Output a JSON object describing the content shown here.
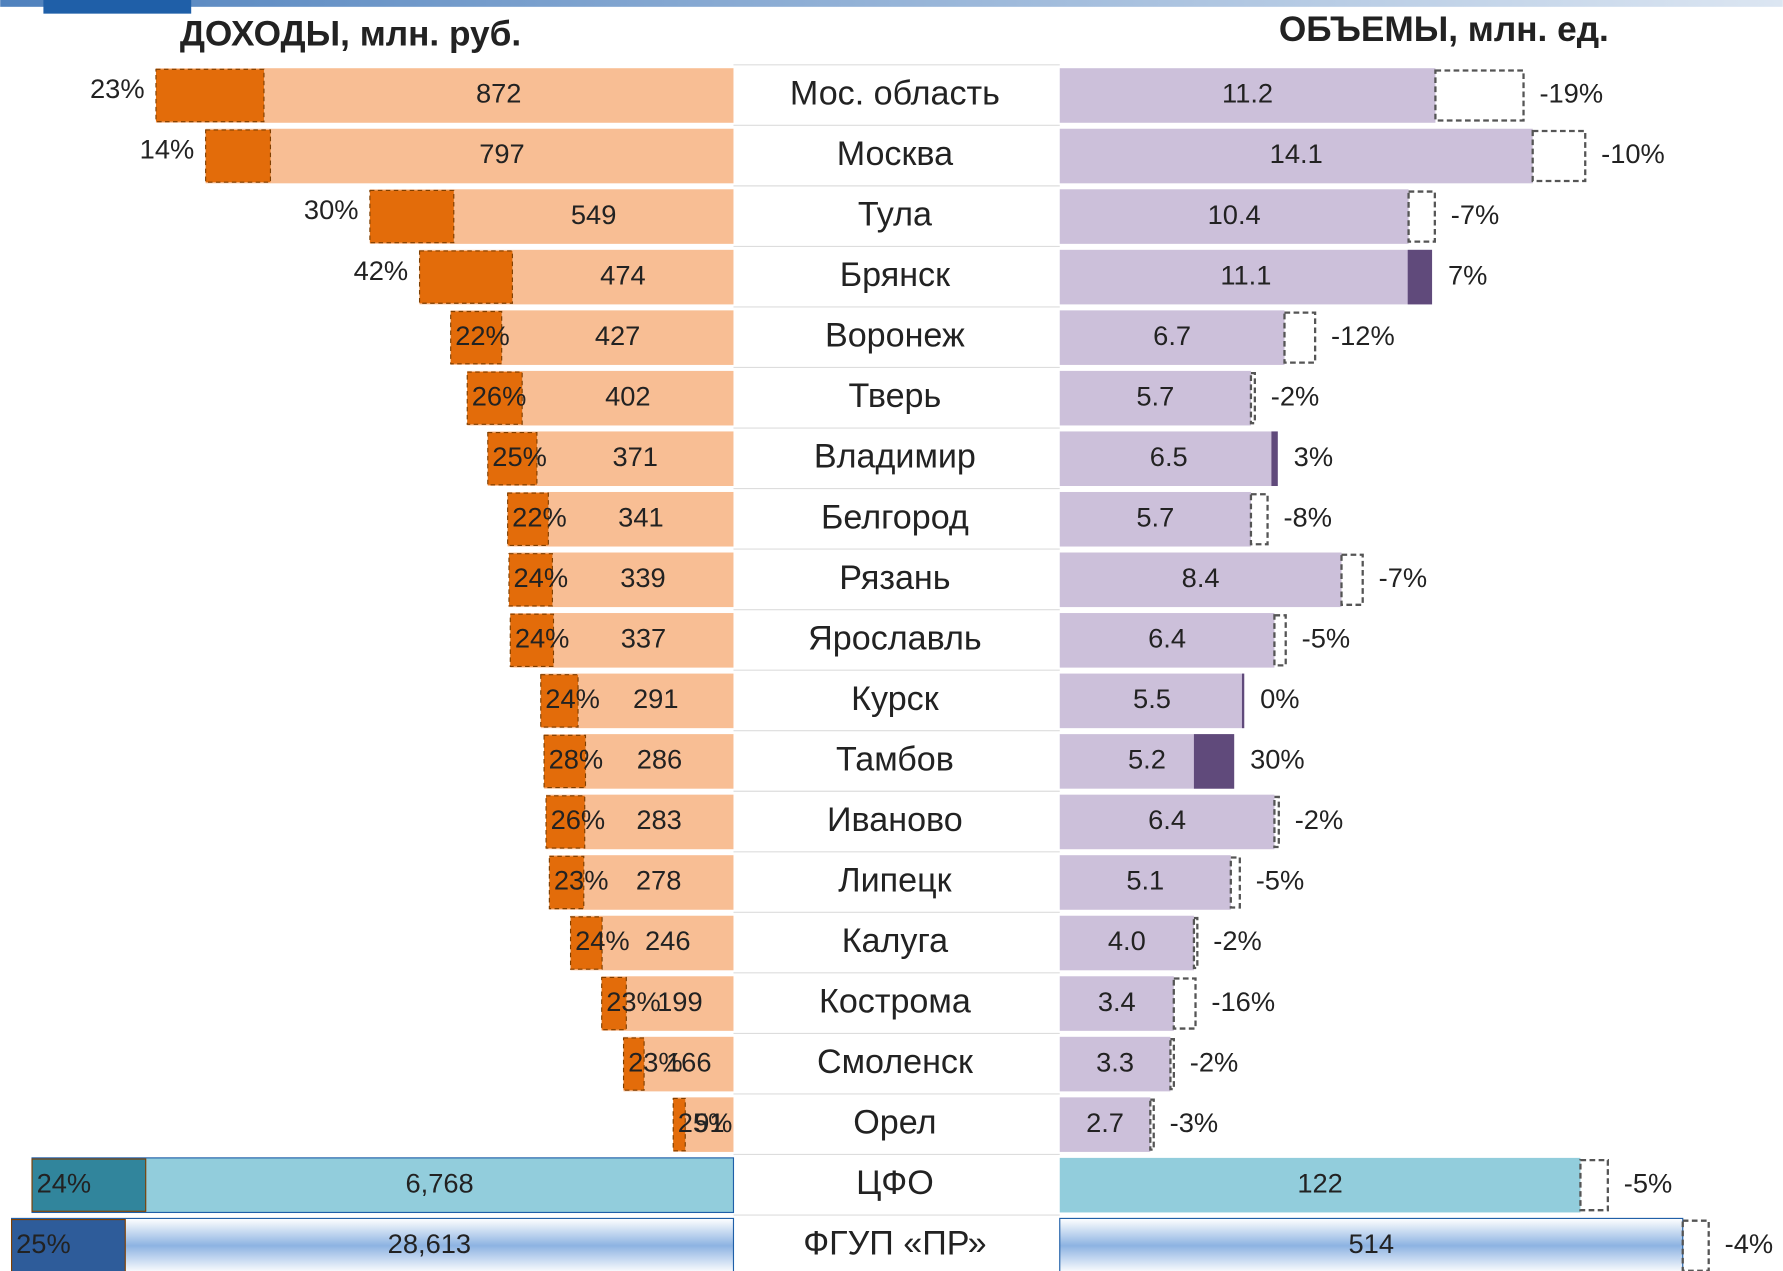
{
  "chart_data": {
    "type": "butterfly",
    "left_title": "ДОХОДЫ, млн. руб.",
    "right_title": "ОБЪЕМЫ, млн. ед.",
    "categories": [
      "Мос. область",
      "Москва",
      "Тула",
      "Брянск",
      "Воронеж",
      "Тверь",
      "Владимир",
      "Белгород",
      "Рязань",
      "Ярославль",
      "Курск",
      "Тамбов",
      "Иваново",
      "Липецк",
      "Калуга",
      "Кострома",
      "Смоленск",
      "Орел",
      "ЦФО",
      "ФГУП «ПР»"
    ],
    "revenue": {
      "values": [
        872,
        797,
        549,
        474,
        427,
        402,
        371,
        341,
        339,
        337,
        291,
        286,
        283,
        278,
        246,
        199,
        166,
        91,
        6768,
        28613
      ],
      "value_labels": [
        "872",
        "797",
        "549",
        "474",
        "427",
        "402",
        "371",
        "341",
        "339",
        "337",
        "291",
        "286",
        "283",
        "278",
        "246",
        "199",
        "166",
        "91",
        "6,768",
        "28,613"
      ],
      "growth": [
        23,
        14,
        30,
        42,
        22,
        26,
        25,
        22,
        24,
        24,
        24,
        28,
        26,
        23,
        24,
        23,
        23,
        25,
        24,
        25
      ],
      "growth_labels": [
        "23%",
        "14%",
        "30%",
        "42%",
        "22%",
        "26%",
        "25%",
        "22%",
        "24%",
        "24%",
        "24%",
        "28%",
        "26%",
        "23%",
        "24%",
        "23%",
        "23%",
        "25%",
        "24%",
        "25%"
      ],
      "color": "#f8be94",
      "growth_color": "#e36c0a"
    },
    "volume": {
      "values": [
        11.2,
        14.1,
        10.4,
        11.1,
        6.7,
        5.7,
        6.5,
        5.7,
        8.4,
        6.4,
        5.5,
        5.2,
        6.4,
        5.1,
        4.0,
        3.4,
        3.3,
        2.7,
        122,
        514
      ],
      "value_labels": [
        "11.2",
        "14.1",
        "10.4",
        "11.1",
        "6.7",
        "5.7",
        "6.5",
        "5.7",
        "8.4",
        "6.4",
        "5.5",
        "5.2",
        "6.4",
        "5.1",
        "4.0",
        "3.4",
        "3.3",
        "2.7",
        "122",
        "514"
      ],
      "growth": [
        -19,
        -10,
        -7,
        7,
        -12,
        -2,
        3,
        -8,
        -7,
        -5,
        0,
        30,
        -2,
        -5,
        -2,
        -16,
        -2,
        -3,
        -5,
        -4
      ],
      "growth_labels": [
        "-19%",
        "-10%",
        "-7%",
        "7%",
        "-12%",
        "-2%",
        "3%",
        "-8%",
        "-7%",
        "-5%",
        "0%",
        "30%",
        "-2%",
        "-5%",
        "-2%",
        "-16%",
        "-2%",
        "-3%",
        "-5%",
        "-4%"
      ],
      "color": "#ccc0da",
      "growth_color": "#604a7b"
    }
  }
}
